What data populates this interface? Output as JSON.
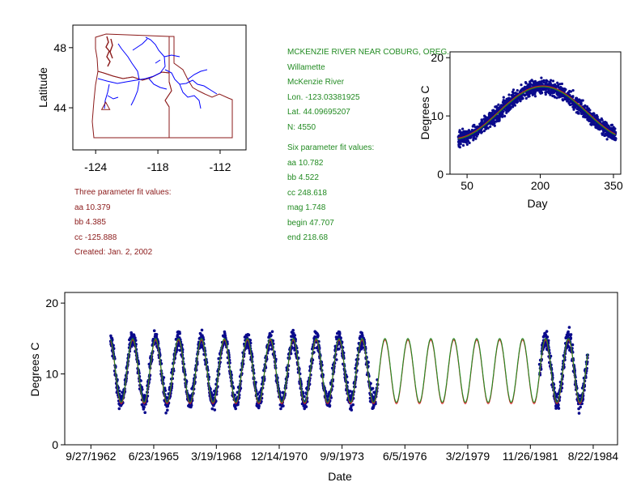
{
  "colors": {
    "map_border": "#8b1a1a",
    "rivers": "#0000ff",
    "scatter": "#0a0a8c",
    "fit_green": "#228b22",
    "fit_red": "#d02020",
    "info_red": "#8b1a1a",
    "info_green": "#228b22"
  },
  "station": {
    "name": "MCKENZIE RIVER NEAR COBURG, OREG.",
    "basin": "Willamette",
    "river": "McKenzie River",
    "lon": "Lon. -123.03381925",
    "lat": "Lat. 44.09695207",
    "n": "N: 4550"
  },
  "three_param": {
    "heading": "Three parameter fit values:",
    "aa": "aa 10.379",
    "bb": "bb 4.385",
    "cc": "cc -125.888",
    "created": "Created:   Jan. 2, 2002"
  },
  "six_param": {
    "heading": "Six parameter fit values:",
    "aa": "aa 10.782",
    "bb": "bb 4.522",
    "cc": "cc 248.618",
    "mag": "mag 1.748",
    "begin": "begin 47.707",
    "end": "end 218.68"
  },
  "chart_data": [
    {
      "type": "map",
      "ylabel": "Latitude",
      "xlabel": "",
      "x_ticks": [
        "-124",
        "-118",
        "-112"
      ],
      "x_tick_values": [
        -124,
        -118,
        -112
      ],
      "y_ticks": [
        "48",
        "44"
      ],
      "y_tick_values": [
        48,
        44
      ],
      "xlim": [
        -126.2,
        -109.5
      ],
      "ylim": [
        41.2,
        49.5
      ],
      "station_marker": {
        "lon": -123.03,
        "lat": 44.1,
        "symbol": "triangle"
      }
    },
    {
      "type": "scatter",
      "title": "",
      "xlabel": "Day",
      "ylabel": "Degrees C",
      "xlim": [
        15,
        365
      ],
      "ylim": [
        0,
        21
      ],
      "x_ticks": [
        "50",
        "200",
        "350"
      ],
      "x_tick_values": [
        50,
        200,
        350
      ],
      "y_ticks": [
        "0",
        "10",
        "20"
      ],
      "y_tick_values": [
        0,
        10,
        20
      ],
      "data_range": {
        "day_min": 32,
        "day_max": 355
      },
      "fit": {
        "mean": 10.5,
        "amplitude": 4.5,
        "peak_day": 205
      }
    },
    {
      "type": "line",
      "title": "",
      "xlabel": "Date",
      "ylabel": "Degrees C",
      "xlim": [
        1961.6,
        1985.7
      ],
      "ylim": [
        0,
        21.5
      ],
      "y_ticks": [
        "0",
        "10",
        "20"
      ],
      "y_tick_values": [
        0,
        10,
        20
      ],
      "x_ticks": [
        "9/27/1962",
        "6/23/1965",
        "3/19/1968",
        "12/14/1970",
        "9/9/1973",
        "6/5/1976",
        "3/2/1979",
        "11/26/1981",
        "8/22/1984"
      ],
      "x_tick_values": [
        1962.74,
        1965.48,
        1968.21,
        1970.95,
        1973.69,
        1976.43,
        1979.17,
        1981.9,
        1984.64
      ],
      "observed_ranges": [
        [
          1963.6,
          1975.25
        ],
        [
          1982.3,
          1984.4
        ]
      ],
      "fit": {
        "mean": 10.5,
        "amplitude": 4.5,
        "peak_day": 205,
        "range": [
          1963.6,
          1984.4
        ]
      }
    }
  ]
}
